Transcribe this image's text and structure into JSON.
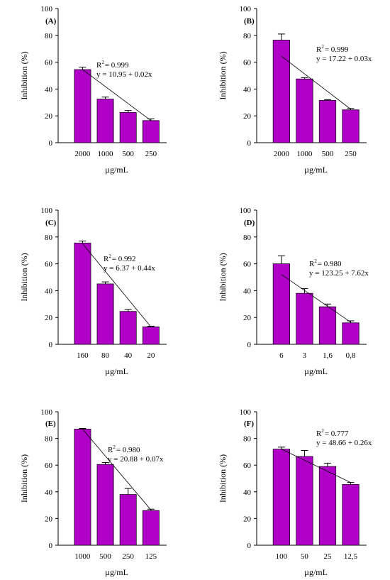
{
  "colors": {
    "bar": "#b000c8",
    "bar_stroke": "#1a001f",
    "axis": "#000000",
    "background": "#ffffff"
  },
  "chart_data": [
    {
      "type": "bar",
      "panel_label": "(A)",
      "categories": [
        "2000",
        "1000",
        "500",
        "250"
      ],
      "values": [
        54.5,
        32.5,
        22.5,
        16.5
      ],
      "errors": [
        1.8,
        1.5,
        1.5,
        1.2
      ],
      "xlabel": "µg/mL",
      "ylabel": "Inhibition (%)",
      "ylim": [
        0,
        100
      ],
      "yticks": [
        "0",
        "20",
        "40",
        "60",
        "80",
        "100"
      ],
      "r2_prefix": "R",
      "r2_sup": "2",
      "r2_value": "= 0.999",
      "equation": "y = 10.95 + 0.02x",
      "trend_line": [
        54.5,
        16.5
      ]
    },
    {
      "type": "bar",
      "panel_label": "(B)",
      "categories": [
        "2000",
        "1000",
        "500",
        "250"
      ],
      "values": [
        76.5,
        47.5,
        31.5,
        24.5
      ],
      "errors": [
        4.5,
        1.0,
        0.5,
        1.0
      ],
      "xlabel": "µg/mL",
      "ylabel": "Inhibition (%)",
      "ylim": [
        0,
        100
      ],
      "yticks": [
        "0",
        "20",
        "40",
        "60",
        "80",
        "100"
      ],
      "r2_prefix": "R",
      "r2_sup": "2",
      "r2_value": "= 0.999",
      "equation": "y = 17.22 + 0.03x",
      "trend_line": [
        64.5,
        25.0
      ]
    },
    {
      "type": "bar",
      "panel_label": "(C)",
      "categories": [
        "160",
        "80",
        "40",
        "20"
      ],
      "values": [
        75.5,
        45.0,
        24.5,
        13.0
      ],
      "errors": [
        1.5,
        1.5,
        1.5,
        0.5
      ],
      "xlabel": "µg/mL",
      "ylabel": "Inhibition (%)",
      "ylim": [
        0,
        100
      ],
      "yticks": [
        "0",
        "20",
        "40",
        "60",
        "80",
        "100"
      ],
      "r2_prefix": "R",
      "r2_sup": "2",
      "r2_value": "= 0.992",
      "equation": "y = 6.37 + 0.44x",
      "trend_line": [
        75.0,
        13.0
      ]
    },
    {
      "type": "bar",
      "panel_label": "(D)",
      "categories": [
        "6",
        "3",
        "1,6",
        "0,8"
      ],
      "values": [
        60.0,
        38.0,
        28.0,
        16.0
      ],
      "errors": [
        6.0,
        3.5,
        2.0,
        1.5
      ],
      "xlabel": "µg/mL",
      "ylabel": "Inhibition (%)",
      "ylim": [
        0,
        100
      ],
      "yticks": [
        "0",
        "20",
        "40",
        "60",
        "80",
        "100"
      ],
      "r2_prefix": "R",
      "r2_sup": "2",
      "r2_value": "= 0.980",
      "equation": "y = 123.25 + 7.62x",
      "trend_line": [
        52.0,
        16.5
      ]
    },
    {
      "type": "bar",
      "panel_label": "(E)",
      "categories": [
        "1000",
        "500",
        "250",
        "125"
      ],
      "values": [
        87.0,
        60.5,
        38.0,
        26.0
      ],
      "errors": [
        0.5,
        1.5,
        4.5,
        1.0
      ],
      "xlabel": "µg/mL",
      "ylabel": "Inhibition (%)",
      "ylim": [
        0,
        100
      ],
      "yticks": [
        "0",
        "20",
        "40",
        "60",
        "80",
        "100"
      ],
      "r2_prefix": "R",
      "r2_sup": "2",
      "r2_value": "= 0.980",
      "equation": "y = 20.88 + 0.07x",
      "trend_line": [
        87.0,
        26.5
      ]
    },
    {
      "type": "bar",
      "panel_label": "(F)",
      "categories": [
        "100",
        "50",
        "25",
        "12,5"
      ],
      "values": [
        72.0,
        66.5,
        59.0,
        45.5
      ],
      "errors": [
        1.5,
        4.5,
        2.5,
        1.5
      ],
      "xlabel": "µg/mL",
      "ylabel": "Inhibition (%)",
      "ylim": [
        0,
        100
      ],
      "yticks": [
        "0",
        "20",
        "40",
        "60",
        "80",
        "100"
      ],
      "r2_prefix": "R",
      "r2_sup": "2",
      "r2_value": "= 0.777",
      "equation": "y = 48.66 + 0.26x",
      "trend_line": [
        72.0,
        47.0
      ]
    }
  ]
}
